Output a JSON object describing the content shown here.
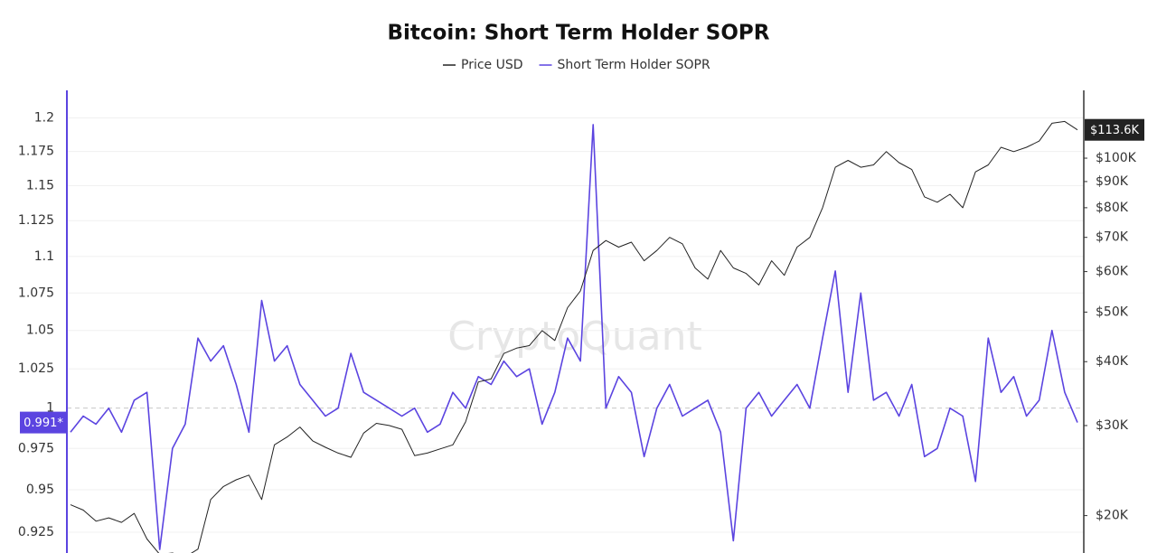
{
  "chart_data": {
    "type": "line",
    "title": "Bitcoin: Short Term Holder SOPR",
    "watermark": "CryptoQuant",
    "ylog": true,
    "y2log": true,
    "ylim": [
      0.913,
      1.221
    ],
    "yticks": [
      0.925,
      0.95,
      0.975,
      1,
      1.025,
      1.05,
      1.075,
      1.1,
      1.125,
      1.15,
      1.175,
      1.2
    ],
    "y2lim": [
      16900,
      135700
    ],
    "y2ticks": [
      {
        "value": 20000,
        "label": "$20K"
      },
      {
        "value": 30000,
        "label": "$30K"
      },
      {
        "value": 40000,
        "label": "$40K"
      },
      {
        "value": 50000,
        "label": "$50K"
      },
      {
        "value": 60000,
        "label": "$60K"
      },
      {
        "value": 70000,
        "label": "$70K"
      },
      {
        "value": 80000,
        "label": "$80K"
      },
      {
        "value": 90000,
        "label": "$90K"
      },
      {
        "value": 100000,
        "label": "$100K"
      }
    ],
    "grid": true,
    "reference_line": 1,
    "legend": "top",
    "series": [
      {
        "name": "Price USD",
        "color": "#222222",
        "axis": "y2",
        "last_label": "$113.6K",
        "values": [
          21000,
          20500,
          19500,
          19800,
          19400,
          20200,
          18000,
          16800,
          16900,
          16600,
          17200,
          21500,
          22800,
          23500,
          24000,
          21500,
          27500,
          28500,
          29800,
          28000,
          27200,
          26500,
          26000,
          29000,
          30300,
          30000,
          29500,
          26200,
          26500,
          27000,
          27500,
          30500,
          36500,
          37000,
          41500,
          42500,
          43000,
          46000,
          44000,
          51000,
          55000,
          66000,
          69000,
          67000,
          68500,
          63000,
          66000,
          70000,
          68000,
          61000,
          58000,
          66000,
          61000,
          59500,
          56500,
          63000,
          59000,
          67000,
          70000,
          80000,
          96000,
          99000,
          96000,
          97000,
          103000,
          98000,
          95000,
          84000,
          82000,
          85000,
          80000,
          94000,
          97000,
          105000,
          103000,
          105000,
          108000,
          117000,
          118000,
          113600
        ]
      },
      {
        "name": "Short Term Holder SOPR",
        "color": "#5b44e0",
        "last_label": "0.991*",
        "values": [
          0.985,
          0.995,
          0.99,
          1.0,
          0.985,
          1.005,
          1.01,
          0.915,
          0.975,
          0.99,
          1.045,
          1.03,
          1.04,
          1.015,
          0.985,
          1.07,
          1.03,
          1.04,
          1.015,
          1.005,
          0.995,
          1.0,
          1.035,
          1.01,
          1.005,
          1.0,
          0.995,
          1.0,
          0.985,
          0.99,
          1.01,
          1.0,
          1.02,
          1.015,
          1.03,
          1.02,
          1.025,
          0.99,
          1.01,
          1.045,
          1.03,
          1.195,
          1.0,
          1.02,
          1.01,
          0.97,
          1.0,
          1.015,
          0.995,
          1.0,
          1.005,
          0.985,
          0.92,
          1.0,
          1.01,
          0.995,
          1.005,
          1.015,
          1.0,
          1.045,
          1.09,
          1.01,
          1.075,
          1.005,
          1.01,
          0.995,
          1.015,
          0.97,
          0.975,
          1.0,
          0.995,
          0.955,
          1.045,
          1.01,
          1.02,
          0.995,
          1.005,
          1.05,
          1.01,
          0.991
        ]
      }
    ]
  }
}
